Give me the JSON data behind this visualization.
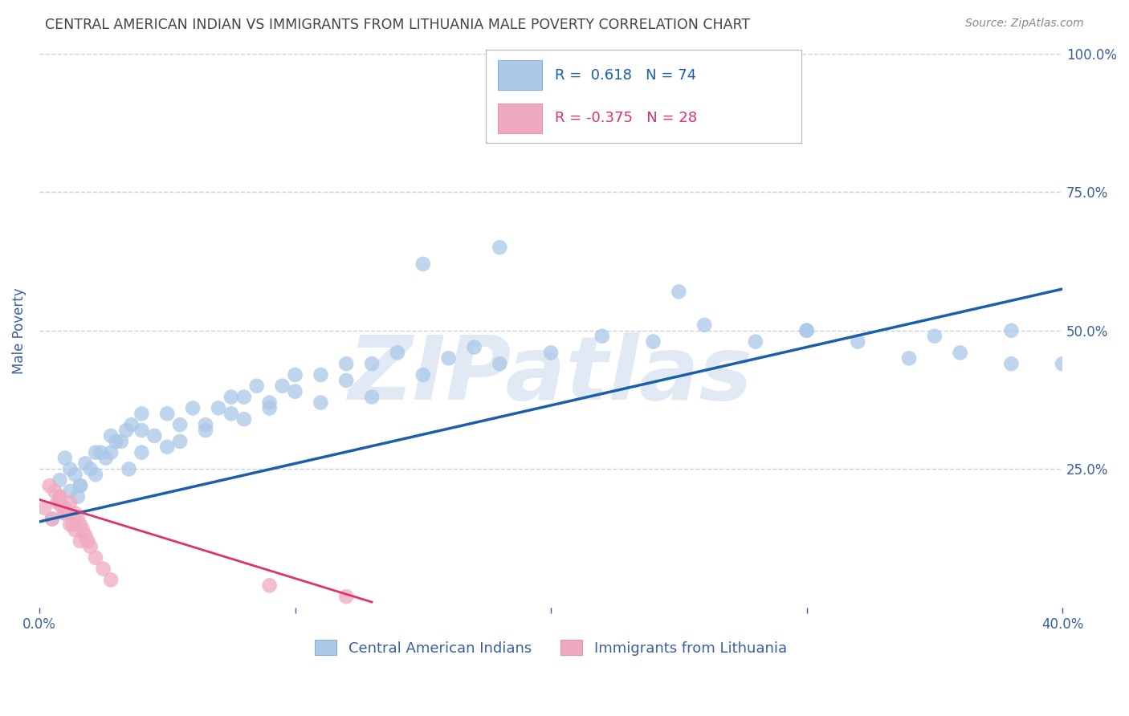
{
  "title": "CENTRAL AMERICAN INDIAN VS IMMIGRANTS FROM LITHUANIA MALE POVERTY CORRELATION CHART",
  "source": "Source: ZipAtlas.com",
  "ylabel": "Male Poverty",
  "r_blue": 0.618,
  "n_blue": 74,
  "r_pink": -0.375,
  "n_pink": 28,
  "xlim": [
    0.0,
    0.4
  ],
  "ylim": [
    0.0,
    1.0
  ],
  "xticks": [
    0.0,
    0.1,
    0.2,
    0.3,
    0.4
  ],
  "xtick_labels": [
    "0.0%",
    "",
    "",
    "",
    "40.0%"
  ],
  "yticks": [
    0.25,
    0.5,
    0.75,
    1.0
  ],
  "ytick_labels": [
    "25.0%",
    "50.0%",
    "75.0%",
    "100.0%"
  ],
  "watermark": "ZIPatlas",
  "legend_label_blue": "Central American Indians",
  "legend_label_pink": "Immigrants from Lithuania",
  "blue_color": "#aac8e8",
  "pink_color": "#f0aac0",
  "blue_line_color": "#1a5fa8",
  "pink_line_color": "#e03070",
  "blue_scatter_x": [
    0.005,
    0.008,
    0.01,
    0.012,
    0.015,
    0.008,
    0.012,
    0.016,
    0.01,
    0.014,
    0.018,
    0.022,
    0.016,
    0.02,
    0.024,
    0.028,
    0.022,
    0.026,
    0.03,
    0.034,
    0.028,
    0.032,
    0.036,
    0.04,
    0.035,
    0.04,
    0.045,
    0.05,
    0.04,
    0.05,
    0.055,
    0.06,
    0.055,
    0.065,
    0.07,
    0.075,
    0.065,
    0.075,
    0.08,
    0.085,
    0.08,
    0.09,
    0.095,
    0.1,
    0.09,
    0.1,
    0.11,
    0.12,
    0.11,
    0.12,
    0.13,
    0.14,
    0.13,
    0.15,
    0.16,
    0.17,
    0.15,
    0.18,
    0.2,
    0.22,
    0.18,
    0.24,
    0.26,
    0.28,
    0.3,
    0.32,
    0.34,
    0.36,
    0.38,
    0.25,
    0.3,
    0.35,
    0.38,
    0.4
  ],
  "blue_scatter_y": [
    0.16,
    0.19,
    0.17,
    0.21,
    0.2,
    0.23,
    0.25,
    0.22,
    0.27,
    0.24,
    0.26,
    0.28,
    0.22,
    0.25,
    0.28,
    0.31,
    0.24,
    0.27,
    0.3,
    0.32,
    0.28,
    0.3,
    0.33,
    0.35,
    0.25,
    0.28,
    0.31,
    0.29,
    0.32,
    0.35,
    0.33,
    0.36,
    0.3,
    0.33,
    0.36,
    0.38,
    0.32,
    0.35,
    0.38,
    0.4,
    0.34,
    0.37,
    0.4,
    0.42,
    0.36,
    0.39,
    0.42,
    0.44,
    0.37,
    0.41,
    0.44,
    0.46,
    0.38,
    0.42,
    0.45,
    0.47,
    0.62,
    0.44,
    0.46,
    0.49,
    0.65,
    0.48,
    0.51,
    0.48,
    0.5,
    0.48,
    0.45,
    0.46,
    0.44,
    0.57,
    0.5,
    0.49,
    0.5,
    0.44
  ],
  "pink_scatter_x": [
    0.002,
    0.005,
    0.008,
    0.004,
    0.007,
    0.01,
    0.006,
    0.009,
    0.012,
    0.008,
    0.011,
    0.014,
    0.01,
    0.013,
    0.016,
    0.012,
    0.015,
    0.018,
    0.014,
    0.017,
    0.02,
    0.016,
    0.019,
    0.022,
    0.025,
    0.028,
    0.09,
    0.12
  ],
  "pink_scatter_y": [
    0.18,
    0.16,
    0.2,
    0.22,
    0.19,
    0.17,
    0.21,
    0.18,
    0.15,
    0.2,
    0.17,
    0.14,
    0.18,
    0.15,
    0.12,
    0.19,
    0.16,
    0.13,
    0.17,
    0.14,
    0.11,
    0.15,
    0.12,
    0.09,
    0.07,
    0.05,
    0.04,
    0.02
  ],
  "blue_line_x": [
    0.0,
    0.4
  ],
  "blue_line_y": [
    0.155,
    0.575
  ],
  "pink_line_x": [
    0.0,
    0.13
  ],
  "pink_line_y": [
    0.195,
    0.01
  ],
  "background_color": "#ffffff",
  "title_color": "#444444",
  "grid_color": "#c8d0dc",
  "tick_color": "#3a5fa0"
}
